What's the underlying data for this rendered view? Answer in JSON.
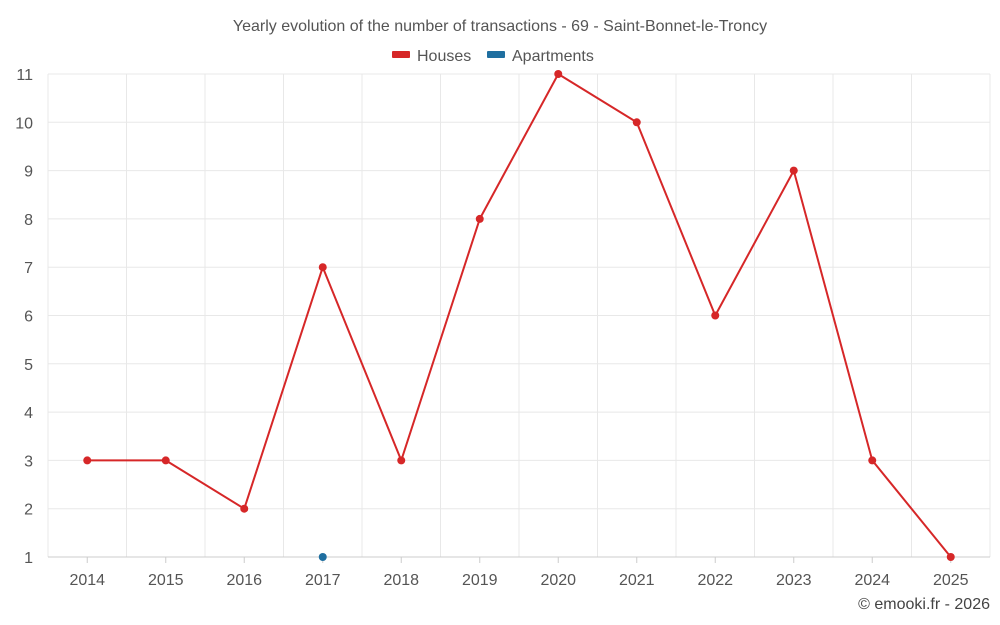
{
  "chart_data": {
    "type": "line",
    "title": "Yearly evolution of the number of transactions - 69 - Saint-Bonnet-le-Troncy",
    "categories": [
      "2014",
      "2015",
      "2016",
      "2017",
      "2018",
      "2019",
      "2020",
      "2021",
      "2022",
      "2023",
      "2024",
      "2025"
    ],
    "y_ticks": [
      "1",
      "2",
      "3",
      "4",
      "5",
      "6",
      "7",
      "8",
      "9",
      "10",
      "11"
    ],
    "ylim": [
      1,
      11
    ],
    "grid": true,
    "legend_position": "top-center",
    "series": [
      {
        "name": "Houses",
        "color": "#d62728",
        "values": [
          3,
          3,
          2,
          7,
          3,
          8,
          11,
          10,
          6,
          9,
          3,
          1
        ]
      },
      {
        "name": "Apartments",
        "color": "#1f6fa0",
        "values": [
          null,
          null,
          null,
          1,
          null,
          null,
          null,
          null,
          null,
          null,
          null,
          null
        ]
      }
    ],
    "credit": "© emooki.fr - 2026"
  }
}
